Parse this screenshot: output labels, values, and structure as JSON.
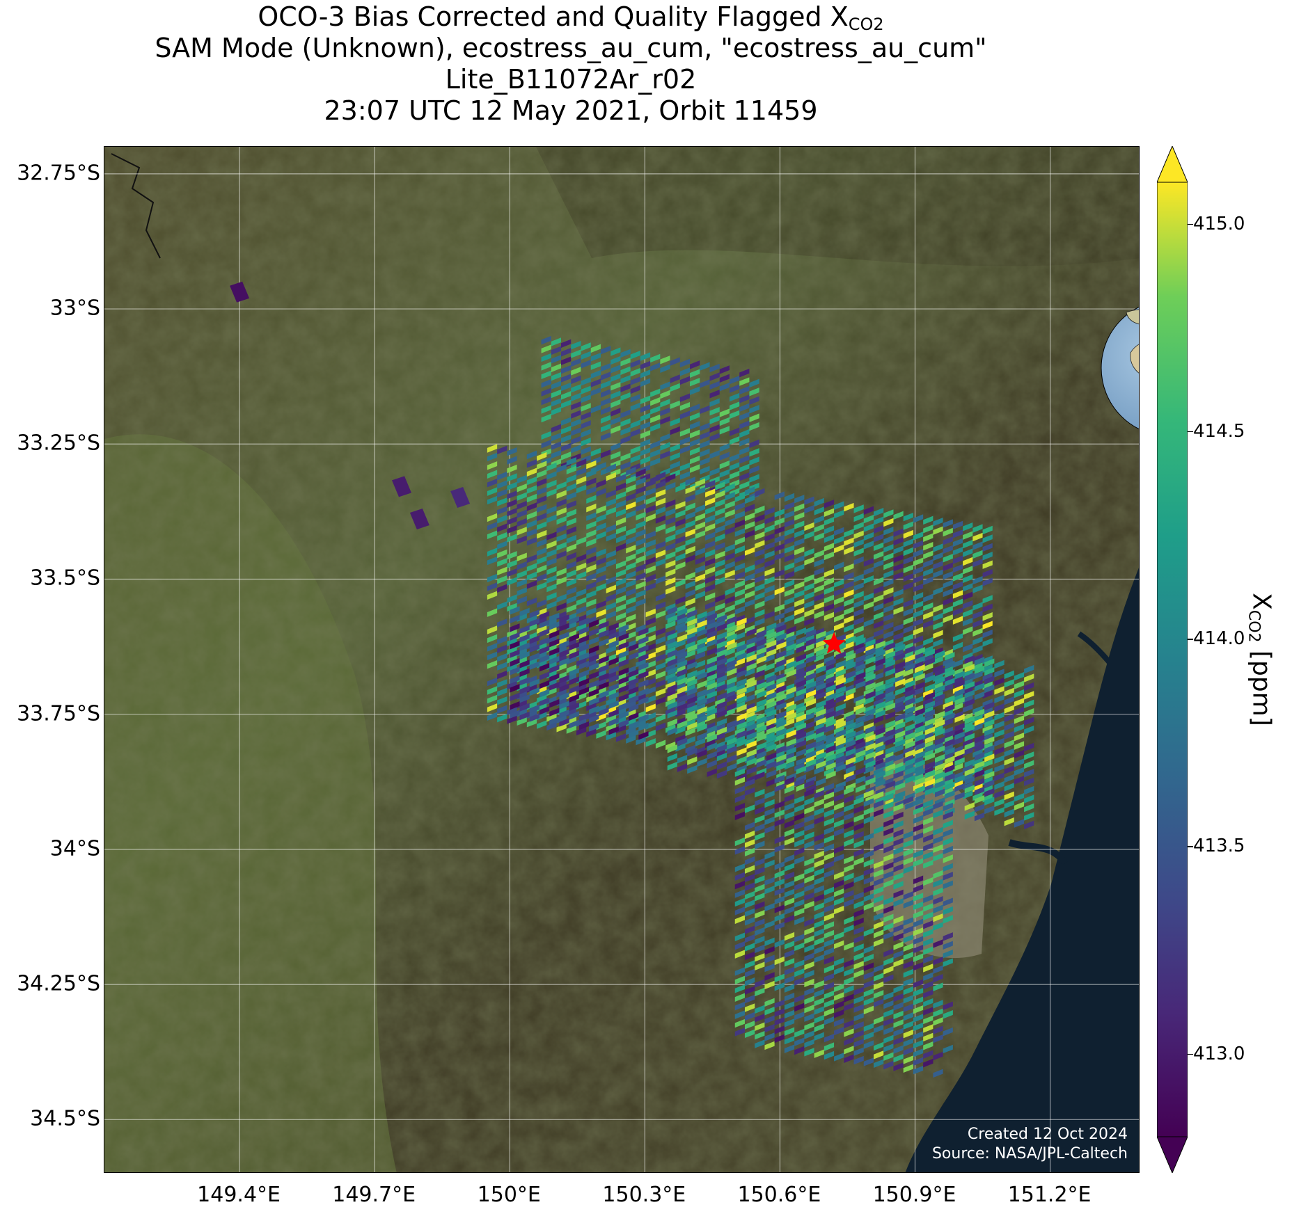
{
  "title": {
    "line1_main": "OCO-3 Bias Corrected and Quality Flagged X",
    "line1_sub": "CO2",
    "line2": "SAM Mode (Unknown), ecostress_au_cum, \"ecostress_au_cum\"",
    "line3": "Lite_B11072Ar_r02",
    "line4": "23:07 UTC 12 May 2021, Orbit 11459"
  },
  "map": {
    "lat_ticks": [
      "32.75°S",
      "33°S",
      "33.25°S",
      "33.5°S",
      "33.75°S",
      "34°S",
      "34.25°S",
      "34.5°S"
    ],
    "lon_ticks": [
      "149.4°E",
      "149.7°E",
      "150°E",
      "150.3°E",
      "150.6°E",
      "150.9°E",
      "151.2°E"
    ],
    "target_marker": "red star",
    "credit_line1": "Created 12 Oct 2024",
    "credit_line2": "Source: NASA/JPL-Caltech"
  },
  "colorbar": {
    "label_main": "X",
    "label_sub": "CO2",
    "label_unit": " [ppm]",
    "ticks": [
      "415.0",
      "414.5",
      "414.0",
      "413.5",
      "413.0"
    ],
    "colormap": "viridis",
    "extend": "both"
  },
  "chart_data": {
    "type": "heatmap",
    "title": "OCO-3 Bias Corrected and Quality Flagged XCO2",
    "xlabel": "",
    "ylabel": "",
    "xlim": [
      149.1,
      151.4
    ],
    "ylim": [
      -34.6,
      -32.7
    ],
    "colorbar_label": "XCO2 [ppm]",
    "colorbar_range": [
      412.8,
      415.1
    ],
    "colorbar_ticks": [
      413.0,
      413.5,
      414.0,
      414.5,
      415.0
    ],
    "target": {
      "lon": 150.72,
      "lat": -33.62
    },
    "swath_regions": [
      {
        "name": "upper strip",
        "lon_range": [
          150.07,
          150.55
        ],
        "lat_range": [
          -33.28,
          -33.05
        ],
        "xco2_range": [
          413.0,
          414.8
        ]
      },
      {
        "name": "main swath",
        "lon_range": [
          149.95,
          151.05
        ],
        "lat_range": [
          -33.75,
          -33.25
        ],
        "xco2_range": [
          413.0,
          415.1
        ]
      },
      {
        "name": "central-east",
        "lon_range": [
          150.35,
          151.15
        ],
        "lat_range": [
          -33.85,
          -33.55
        ],
        "xco2_range": [
          413.0,
          415.1
        ]
      },
      {
        "name": "west lobe",
        "lon_range": [
          150.0,
          150.3
        ],
        "lat_range": [
          -33.75,
          -33.55
        ],
        "xco2_range": [
          412.8,
          413.8
        ]
      },
      {
        "name": "southern tail",
        "lon_range": [
          150.5,
          150.98
        ],
        "lat_range": [
          -34.35,
          -33.85
        ],
        "xco2_range": [
          412.9,
          415.0
        ]
      }
    ],
    "isolated_soundings": [
      {
        "lon": 149.4,
        "lat": -32.97,
        "xco2": 412.9
      },
      {
        "lon": 149.76,
        "lat": -33.33,
        "xco2": 413.0
      },
      {
        "lon": 149.8,
        "lat": -33.39,
        "xco2": 413.0
      },
      {
        "lon": 149.89,
        "lat": -33.35,
        "xco2": 413.1
      }
    ]
  }
}
